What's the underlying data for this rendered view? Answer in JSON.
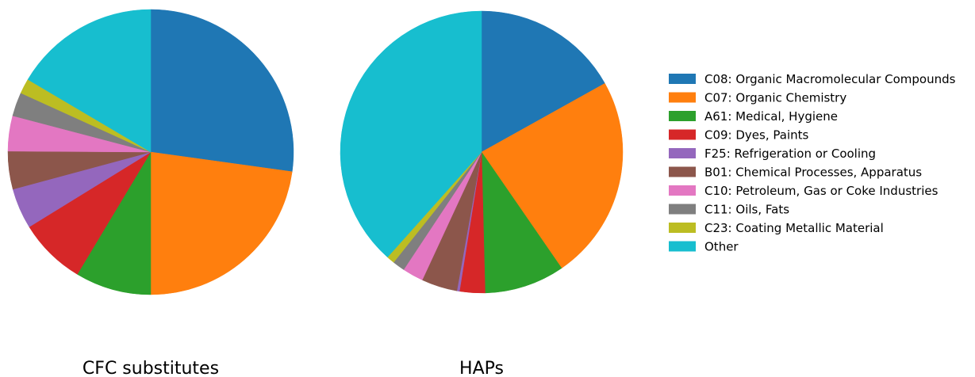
{
  "chart_data": {
    "type": "pie",
    "categories": [
      "C08: Organic Macromolecular Compounds",
      "C07: Organic Chemistry",
      "A61: Medical, Hygiene",
      "C09: Dyes, Paints",
      "F25: Refrigeration or Cooling",
      "B01: Chemical Processes, Apparatus",
      "C10: Petroleum, Gas or Coke Industries",
      "C11: Oils, Fats",
      "C23: Coating Metallic Material",
      "Other"
    ],
    "colors": [
      "#1f77b4",
      "#ff7f0e",
      "#2ca02c",
      "#d62728",
      "#9467bd",
      "#8c564b",
      "#e377c2",
      "#7f7f7f",
      "#bcbd22",
      "#17becf"
    ],
    "pies": [
      {
        "title": "CFC substitutes",
        "values": [
          27.2,
          22.8,
          8.6,
          7.6,
          4.6,
          4.3,
          4.0,
          2.7,
          1.7,
          16.5
        ]
      },
      {
        "title": "HAPs",
        "values": [
          16.9,
          23.5,
          9.2,
          2.9,
          0.3,
          4.1,
          2.4,
          1.4,
          0.9,
          38.4
        ]
      }
    ],
    "legend_position": "right",
    "start_angle": "top",
    "direction": "clockwise"
  }
}
